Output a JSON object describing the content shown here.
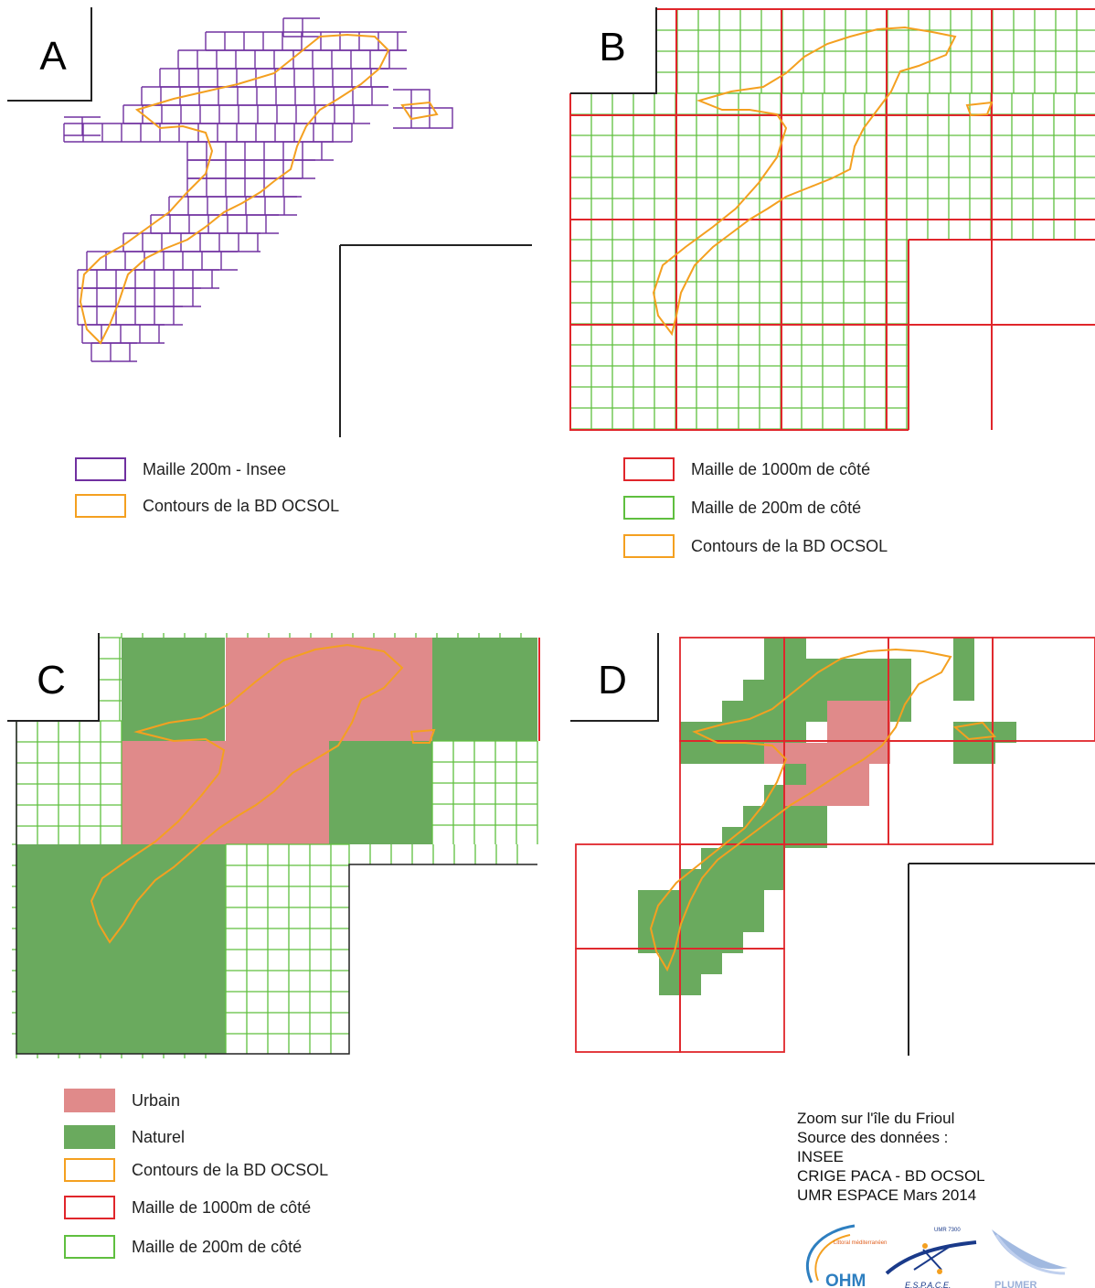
{
  "panels": [
    {
      "id": "A",
      "label": "A"
    },
    {
      "id": "B",
      "label": "B"
    },
    {
      "id": "C",
      "label": "C"
    },
    {
      "id": "D",
      "label": "D"
    }
  ],
  "legend_ab_left": [
    {
      "label": "Maille 200m - Insee",
      "color": "#7030a0"
    },
    {
      "label": "Contours de la BD OCSOL",
      "color": "#f4a020"
    }
  ],
  "legend_b": [
    {
      "label": "Maille de 1000m de côté",
      "color": "#e0262b"
    },
    {
      "label": "Maille de 200m de côté",
      "color": "#5fbf3f"
    },
    {
      "label": "Contours de la BD OCSOL",
      "color": "#f4a020"
    }
  ],
  "legend_cd": [
    {
      "label": "Urbain",
      "color": "#e08a8a",
      "fill": true
    },
    {
      "label": "Naturel",
      "color": "#6aaa5e",
      "fill": true
    },
    {
      "label": "Contours de la BD OCSOL",
      "color": "#f4a020"
    },
    {
      "label": "Maille de 1000m de côté",
      "color": "#e0262b"
    },
    {
      "label": "Maille de 200m de côté",
      "color": "#5fbf3f"
    }
  ],
  "credits": [
    "Zoom sur l'île du Frioul",
    "Source des données :",
    "INSEE",
    "CRIGE PACA - BD OCSOL",
    "UMR ESPACE Mars 2014"
  ],
  "logos": {
    "ohm_small": "Littoral méditerranéen",
    "ohm": "OHM",
    "espace_top": "UMR 7300",
    "espace": "E.S.P.A.C.E.",
    "plumer": "PLUMER"
  },
  "colors": {
    "purple": "#7030a0",
    "orange": "#f4a020",
    "red": "#e0262b",
    "green": "#5fbf3f",
    "urban": "#e08a8a",
    "natural": "#6aaa5e"
  }
}
